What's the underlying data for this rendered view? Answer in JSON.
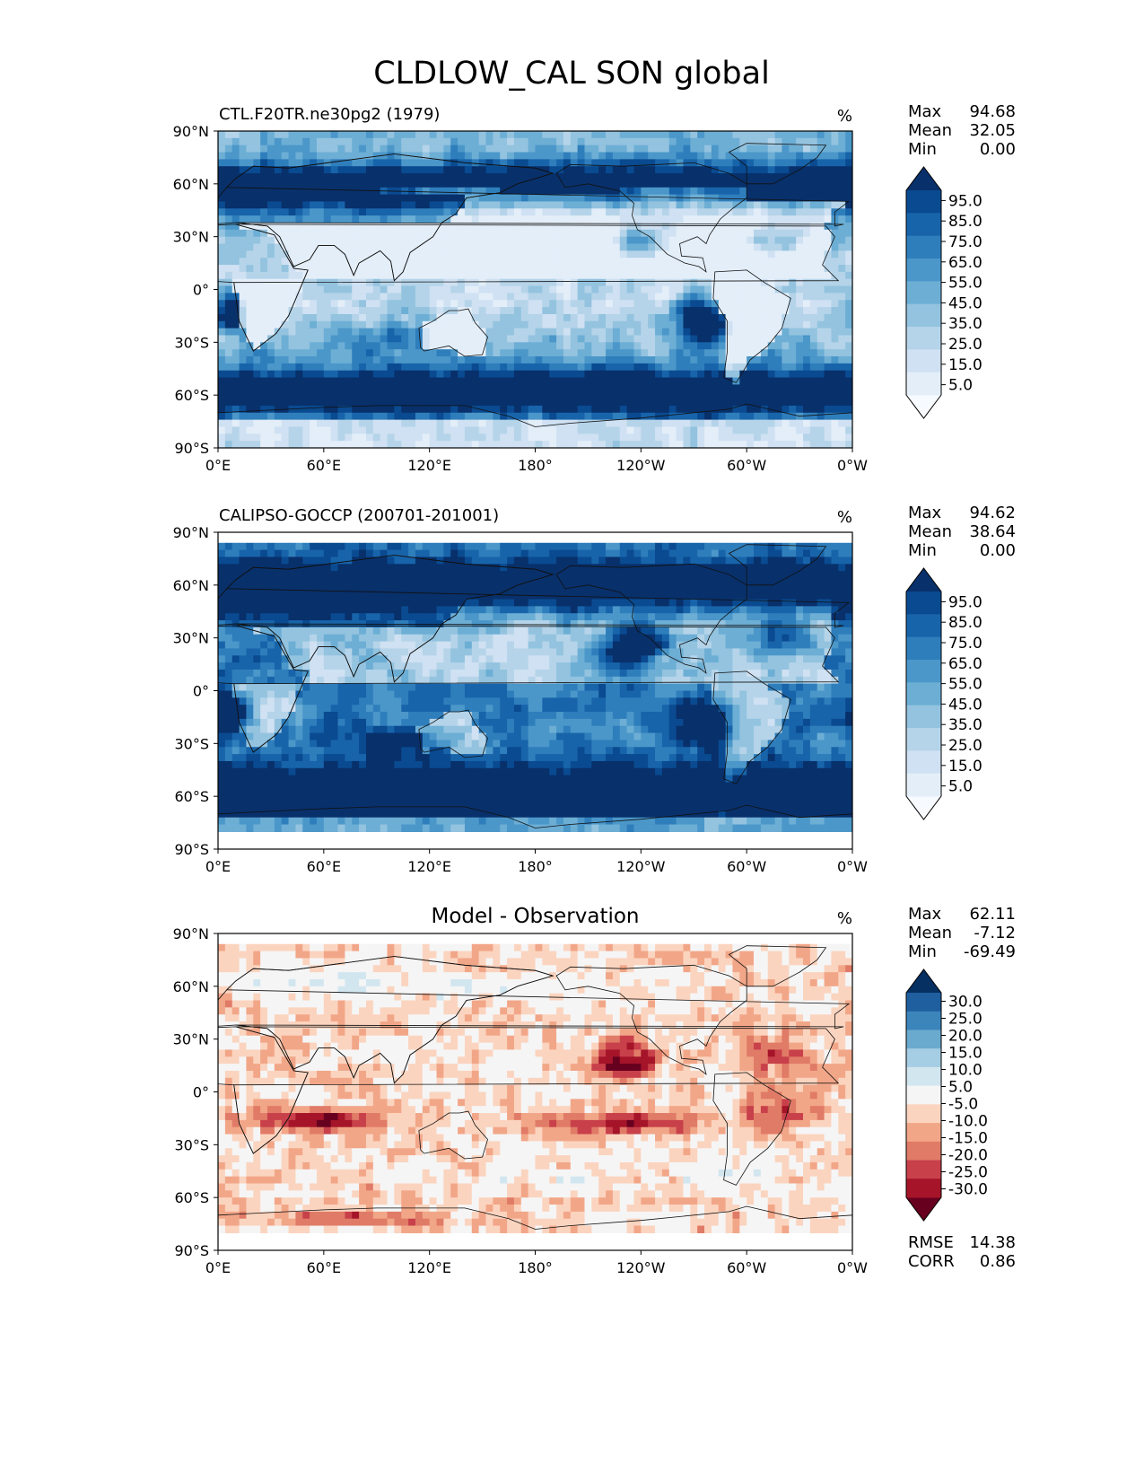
{
  "title": "CLDLOW_CAL SON global",
  "chart_data": [
    {
      "type": "heatmap",
      "panel": "model",
      "title": "CTL.F20TR.ne30pg2 (1979)",
      "units": "%",
      "stats": {
        "max_label": "Max",
        "max": "94.68",
        "mean_label": "Mean",
        "mean": "32.05",
        "min_label": "Min",
        "min": "0.00"
      },
      "colorbar": {
        "levels": [
          0,
          5,
          10,
          15,
          20,
          25,
          30,
          35,
          40,
          45,
          50,
          55,
          60,
          65,
          70,
          75,
          80,
          85,
          90,
          95,
          100
        ],
        "tick_labels": [
          "95.0",
          "85.0",
          "75.0",
          "65.0",
          "55.0",
          "45.0",
          "35.0",
          "25.0",
          "15.0",
          "5.0"
        ],
        "colors": [
          "#f7fbff",
          "#e3eef9",
          "#cfe1f2",
          "#b5d4e9",
          "#93c3df",
          "#6daed5",
          "#4b97c9",
          "#2f7ebc",
          "#1864aa",
          "#0a4a90",
          "#08306b"
        ]
      },
      "xlabels": [
        "0°E",
        "60°E",
        "120°E",
        "180°",
        "120°W",
        "60°W",
        "0°W"
      ],
      "ylabels": [
        "90°N",
        "60°N",
        "30°N",
        "0°",
        "30°S",
        "60°S",
        "90°S"
      ]
    },
    {
      "type": "heatmap",
      "panel": "observation",
      "title": "CALIPSO-GOCCP (200701-201001)",
      "units": "%",
      "stats": {
        "max_label": "Max",
        "max": "94.62",
        "mean_label": "Mean",
        "mean": "38.64",
        "min_label": "Min",
        "min": "0.00"
      },
      "colorbar": {
        "levels": [
          0,
          5,
          10,
          15,
          20,
          25,
          30,
          35,
          40,
          45,
          50,
          55,
          60,
          65,
          70,
          75,
          80,
          85,
          90,
          95,
          100
        ],
        "tick_labels": [
          "95.0",
          "85.0",
          "75.0",
          "65.0",
          "55.0",
          "45.0",
          "35.0",
          "25.0",
          "15.0",
          "5.0"
        ],
        "colors": [
          "#f7fbff",
          "#e3eef9",
          "#cfe1f2",
          "#b5d4e9",
          "#93c3df",
          "#6daed5",
          "#4b97c9",
          "#2f7ebc",
          "#1864aa",
          "#0a4a90",
          "#08306b"
        ]
      },
      "xlabels": [
        "0°E",
        "60°E",
        "120°E",
        "180°",
        "120°W",
        "60°W",
        "0°W"
      ],
      "ylabels": [
        "90°N",
        "60°N",
        "30°N",
        "0°",
        "30°S",
        "60°S",
        "90°S"
      ]
    },
    {
      "type": "heatmap",
      "panel": "difference",
      "title": "Model - Observation",
      "units": "%",
      "stats": {
        "max_label": "Max",
        "max": "62.11",
        "mean_label": "Mean",
        "mean": "-7.12",
        "min_label": "Min",
        "min": "-69.49"
      },
      "metrics": {
        "rmse_label": "RMSE",
        "rmse": "14.38",
        "corr_label": "CORR",
        "corr": "0.86"
      },
      "colorbar": {
        "levels": [
          -30,
          -25,
          -20,
          -15,
          -10,
          -5,
          5,
          10,
          15,
          20,
          25,
          30
        ],
        "tick_labels": [
          "30.0",
          "25.0",
          "20.0",
          "15.0",
          "10.0",
          "5.0",
          "-5.0",
          "-10.0",
          "-15.0",
          "-20.0",
          "-25.0",
          "-30.0"
        ],
        "colors": [
          "#67001f",
          "#a51429",
          "#c8404a",
          "#e07b67",
          "#f2a688",
          "#fbd4bf",
          "#f5f5f5",
          "#d2e6f0",
          "#a5cde3",
          "#6aaace",
          "#3b85bb",
          "#1f5e9f",
          "#053061"
        ]
      },
      "xlabels": [
        "0°E",
        "60°E",
        "120°E",
        "180°",
        "120°W",
        "60°W",
        "0°W"
      ],
      "ylabels": [
        "90°N",
        "60°N",
        "30°N",
        "0°",
        "30°S",
        "60°S",
        "90°S"
      ]
    }
  ]
}
